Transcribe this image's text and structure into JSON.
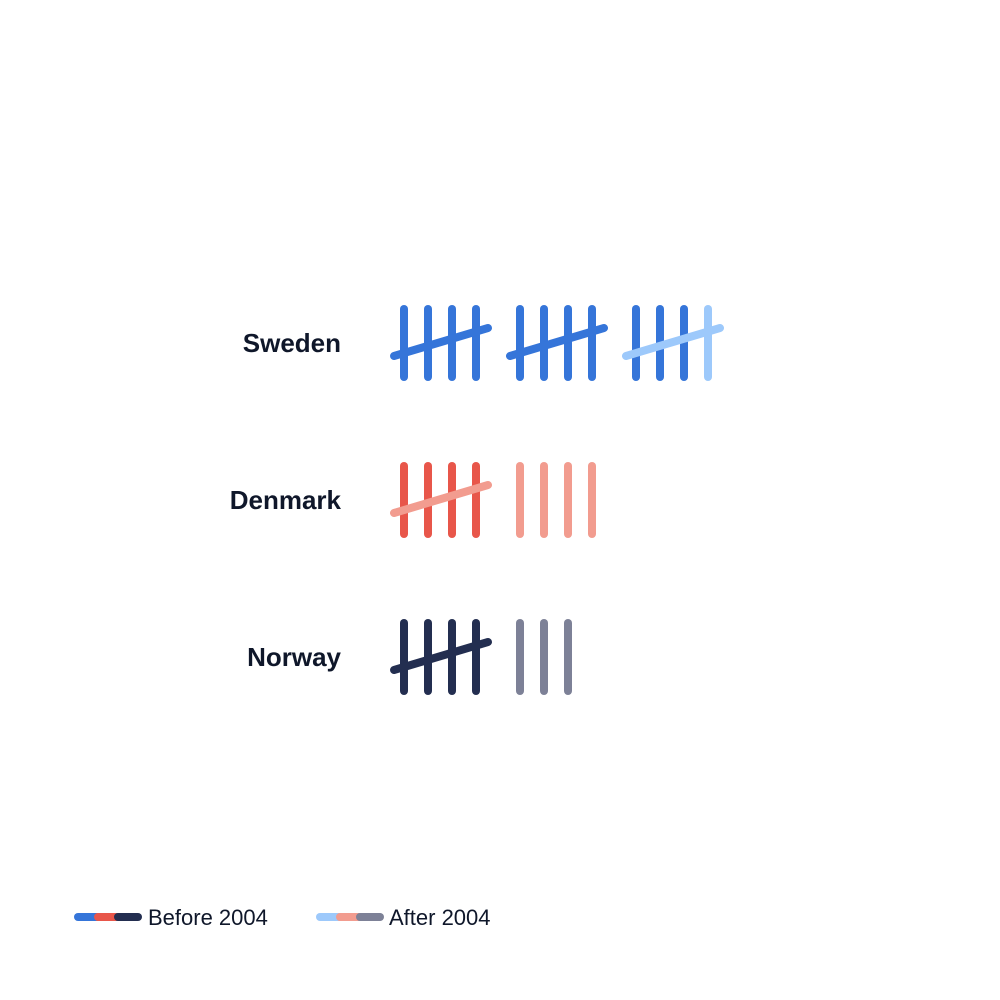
{
  "chart_data": {
    "type": "tally",
    "categories": [
      "Sweden",
      "Denmark",
      "Norway"
    ],
    "series": [
      {
        "name": "Before 2004",
        "values": [
          13,
          4,
          5
        ]
      },
      {
        "name": "After 2004",
        "values": [
          2,
          5,
          3
        ]
      }
    ],
    "colors": {
      "Sweden": {
        "before": "#3575d9",
        "after": "#9dc9fb"
      },
      "Denmark": {
        "before": "#e8564a",
        "after": "#f29c8f"
      },
      "Norway": {
        "before": "#232e50",
        "after": "#7d8197"
      }
    },
    "legend": {
      "placement": "bottom-left",
      "items": [
        {
          "label": "Before 2004",
          "colors": [
            "#3575d9",
            "#e8564a",
            "#232e50"
          ]
        },
        {
          "label": "After 2004",
          "colors": [
            "#9dc9fb",
            "#f29c8f",
            "#7d8197"
          ]
        }
      ]
    }
  }
}
